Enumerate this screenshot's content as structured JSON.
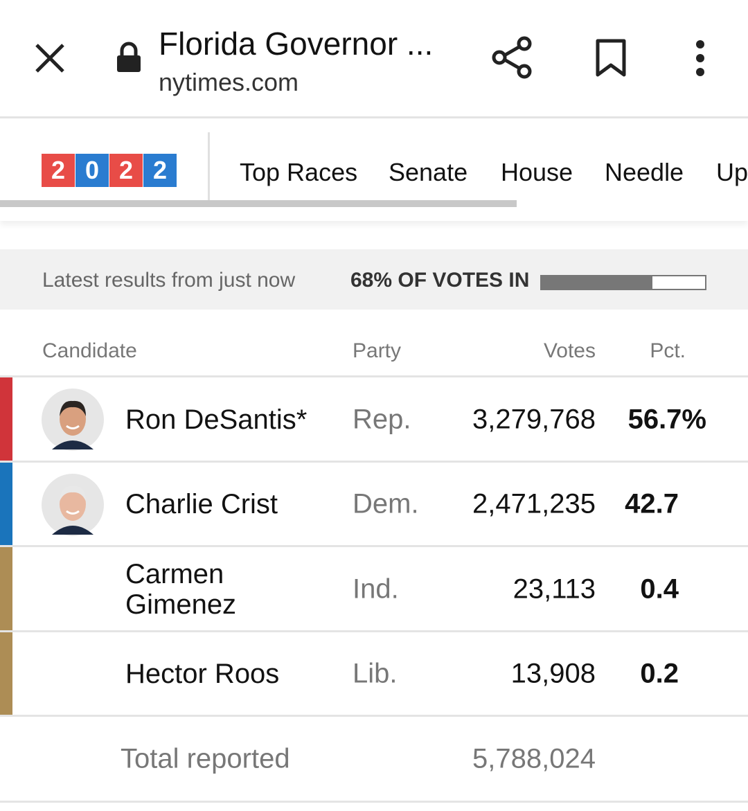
{
  "browser": {
    "title": "Florida Governor ...",
    "domain": "nytimes.com"
  },
  "nav": {
    "logo": [
      "2",
      "0",
      "2",
      "2"
    ],
    "logo_colors": [
      "#e84c47",
      "#2a7cd0",
      "#e84c47",
      "#2a7cd0"
    ],
    "items": [
      "Top Races",
      "Senate",
      "House",
      "Needle",
      "Up"
    ]
  },
  "status": {
    "latest": "Latest results from just now",
    "progress": {
      "value": 68,
      "label": "68% OF VOTES IN"
    }
  },
  "table": {
    "headers": [
      "Candidate",
      "Party",
      "Votes",
      "Pct."
    ],
    "rows": [
      {
        "name": "Ron DeSantis*",
        "party": "Rep.",
        "votes": "3,279,768",
        "pct": "56.7%",
        "color": "#d0343a",
        "photo": true
      },
      {
        "name": "Charlie Crist",
        "party": "Dem.",
        "votes": "2,471,235",
        "pct": "42.7",
        "color": "#1a74bb",
        "photo": true
      },
      {
        "name": "Carmen Gimenez",
        "party": "Ind.",
        "votes": "23,113",
        "pct": "0.4",
        "color": "#ad8d55",
        "photo": false
      },
      {
        "name": "Hector Roos",
        "party": "Lib.",
        "votes": "13,908",
        "pct": "0.2",
        "color": "#ad8d55",
        "photo": false
      }
    ],
    "total": {
      "label": "Total reported",
      "votes": "5,788,024"
    }
  }
}
